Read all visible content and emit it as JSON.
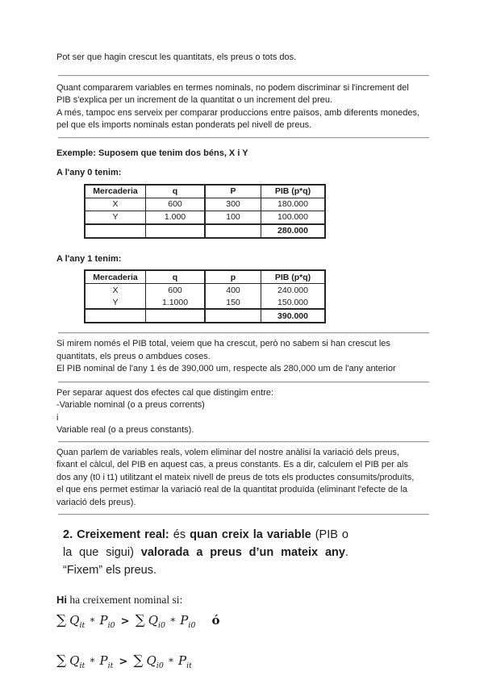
{
  "colors": {
    "background": "#ffffff",
    "text": "#1d1d1d",
    "divider": "#989898",
    "table_border": "#262626"
  },
  "paragraphs": {
    "intro": "Pot ser que hagin crescut les quantitats, els preus o tots dos.",
    "nominal_comparison_lines": [
      "Quant compararem variables en termes nominals, no podem discriminar si l'increment del",
      "PIB s'explica per un increment de la quantitat o un increment del preu.",
      "A més, tampoc ens serveix per comparar produccions entre països, amb diferents monedes,",
      "pel que els imports nominals estan ponderats pel nivell de preus."
    ],
    "pib_total_lines": [
      "Si mirem només el PIB total, veiem que ha crescut, però no sabem si han crescut les",
      "quantitats, els preus o ambdues coses.",
      "El PIB nominal de l'any 1 és de 390,000 um, respecte als 280,000 um de l'any anterior"
    ],
    "distinguish_lines": [
      "Per separar aquest dos efectes cal que distingim entre:",
      "-Variable nominal (o a preus corrents)",
      "i",
      "Variable real (o a preus constants)."
    ],
    "real_variables_lines": [
      "Quan parlem de variables reals, volem eliminar del nostre anàlisi la variació dels preus,",
      "fixant el càlcul, del PIB en aquest cas, a preus constants. Es a dir, calculem el PIB per als",
      "dos any (t0 i t1) utilitzant el mateix nivell de preus de tots els productes consumits/produïts,",
      "el que ens permet estimar la variació real de la quantitat produïda (eliminant l'efecte de la",
      "variació dels preus)."
    ]
  },
  "example": {
    "title": "Exemple: Suposem que tenim dos béns, X i Y",
    "year0_label": "A l'any 0 tenim:",
    "year1_label": "A l'any 1 tenim:",
    "table_year0": {
      "headers": [
        "Mercaderia",
        "q",
        "P",
        "PIB (p*q)"
      ],
      "rows": [
        [
          "X",
          "600",
          "300",
          "180.000"
        ],
        [
          "Y",
          "1.000",
          "100",
          "100.000"
        ]
      ],
      "total_row": [
        "",
        "",
        "",
        "280.000"
      ]
    },
    "table_year1": {
      "headers": [
        "Mercaderia",
        "q",
        "p",
        "PIB (p*q)"
      ],
      "rows": [
        [
          "X",
          "600",
          "400",
          "240.000"
        ],
        [
          "Y",
          "1.1000",
          "150",
          "150.000"
        ]
      ],
      "total_row": [
        "",
        "",
        "",
        "390.000"
      ]
    }
  },
  "section2": {
    "lines": [
      {
        "justify": true,
        "runs": [
          {
            "text": "2. Creixement real:",
            "bold": true
          },
          {
            "text": " és ",
            "bold": false
          },
          {
            "text": "quan creix la variable",
            "bold": true
          },
          {
            "text": " (PIB o",
            "bold": false
          }
        ]
      },
      {
        "justify": true,
        "runs": [
          {
            "text": "la que sigui) ",
            "bold": false
          },
          {
            "text": "valorada a preus d’un mateix any",
            "bold": true
          },
          {
            "text": ".",
            "bold": false
          }
        ]
      },
      {
        "justify": false,
        "runs": [
          {
            "text": "“Fixem” els preus.",
            "bold": false
          }
        ]
      }
    ]
  },
  "nominal_heading": {
    "lines": [
      {
        "justify": false,
        "runs": [
          {
            "text": "Hi",
            "bold": true
          },
          {
            "text": " ha creixement nominal si:",
            "serif": true
          }
        ]
      }
    ]
  },
  "formulas": {
    "f1": {
      "tokens": [
        {
          "t": "sum",
          "v": "∑"
        },
        {
          "t": "var",
          "base": "Q",
          "sub": "it"
        },
        {
          "t": "op",
          "v": "∗"
        },
        {
          "t": "var",
          "base": "P",
          "sub": "i0"
        },
        {
          "t": "op",
          "v": ">"
        },
        {
          "t": "sum",
          "v": "∑"
        },
        {
          "t": "var",
          "base": "Q",
          "sub": "i0"
        },
        {
          "t": "op",
          "v": "∗"
        },
        {
          "t": "var",
          "base": "P",
          "sub": "i0"
        },
        {
          "t": "txt",
          "v": "ó"
        }
      ]
    },
    "f2": {
      "tokens": [
        {
          "t": "sum",
          "v": "∑"
        },
        {
          "t": "var",
          "base": "Q",
          "sub": "it"
        },
        {
          "t": "op",
          "v": "∗"
        },
        {
          "t": "var",
          "base": "P",
          "sub": "it"
        },
        {
          "t": "op",
          "v": ">"
        },
        {
          "t": "sum",
          "v": "∑"
        },
        {
          "t": "var",
          "base": "Q",
          "sub": "i0"
        },
        {
          "t": "op",
          "v": "∗"
        },
        {
          "t": "var",
          "base": "P",
          "sub": "it"
        }
      ]
    }
  }
}
